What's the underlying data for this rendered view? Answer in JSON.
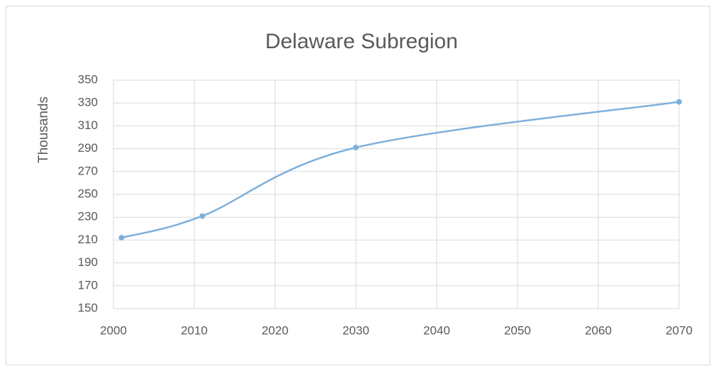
{
  "chart_data": {
    "type": "line",
    "title": "Delaware Subregion",
    "y_label": "Thousands",
    "x": [
      2001,
      2011,
      2030,
      2070
    ],
    "series": [
      {
        "name": "Delaware Subregion",
        "color": "#7eb0dc",
        "values": [
          212,
          231,
          291,
          331
        ]
      }
    ],
    "xlim": [
      2000,
      2070
    ],
    "xticks": [
      2000,
      2010,
      2020,
      2030,
      2040,
      2050,
      2060,
      2070
    ],
    "ylim": [
      150,
      350
    ],
    "yticks": [
      150,
      170,
      190,
      210,
      230,
      250,
      270,
      290,
      310,
      330,
      350
    ],
    "grid": true,
    "smooth": true
  }
}
